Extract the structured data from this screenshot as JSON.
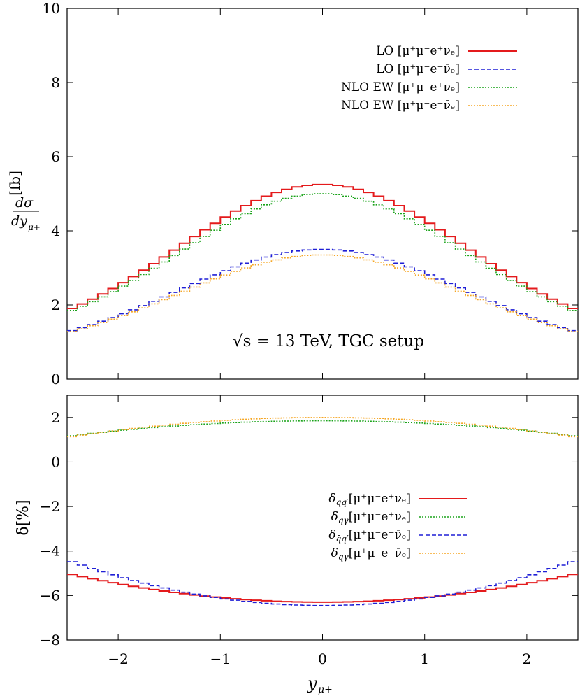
{
  "chart_data": [
    {
      "type": "line",
      "panel": "top",
      "ylabel": "dσ/dy_{μ+} [fb]",
      "ylabel_parts": {
        "num": "dσ",
        "den": "dy",
        "sub": "μ+",
        "unit": "[fb]"
      },
      "xlim": [
        -2.5,
        2.5
      ],
      "ylim": [
        0,
        10
      ],
      "yticks": [
        "0",
        "2",
        "4",
        "6",
        "8",
        "10"
      ],
      "xticks": [
        "−2",
        "−1",
        "0",
        "1",
        "2"
      ],
      "annotation": "√s = 13 TeV, TGC setup",
      "legend_position": "top-right",
      "series": [
        {
          "name": "LO [μ+μ−e+νe]",
          "label": "LO",
          "process": "[μ⁺μ⁻e⁺νₑ]",
          "color": "#e41a1c",
          "style": "solid",
          "profile": "gauss",
          "at0": 5.25,
          "at2_5": 1.85,
          "sigma": 1.4
        },
        {
          "name": "LO [μ+μ−e−ν̄e]",
          "label": "LO",
          "process": "[μ⁺μ⁻e⁻ν̄ₑ]",
          "color": "#1f1fd6",
          "style": "dashed",
          "profile": "gauss",
          "at0": 3.5,
          "at2_5": 1.27,
          "sigma": 1.4
        },
        {
          "name": "NLO EW [μ+μ−e+νe]",
          "label": "NLO EW",
          "process": "[μ⁺μ⁻e⁺νₑ]",
          "color": "#1aa31a",
          "style": "dotted",
          "profile": "gauss",
          "at0": 5.0,
          "at2_5": 1.8,
          "sigma": 1.4
        },
        {
          "name": "NLO EW [μ+μ−e−ν̄e]",
          "label": "NLO EW",
          "process": "[μ⁺μ⁻e⁻ν̄ₑ]",
          "color": "#f5a623",
          "style": "dotted",
          "profile": "gauss",
          "at0": 3.35,
          "at2_5": 1.25,
          "sigma": 1.4
        }
      ]
    },
    {
      "type": "line",
      "panel": "bottom",
      "ylabel": "δ[%]",
      "xlabel": "y_{μ+}",
      "xlabel_parts": {
        "main": "y",
        "sub": "μ+"
      },
      "xlim": [
        -2.5,
        2.5
      ],
      "ylim": [
        -8,
        3
      ],
      "yticks": [
        "−8",
        "−6",
        "−4",
        "−2",
        "0",
        "2"
      ],
      "xticks": [
        "−2",
        "−1",
        "0",
        "1",
        "2"
      ],
      "legend_position": "bottom-center",
      "series": [
        {
          "name": "δ_{q̄q′}[μ+μ−e+νe]",
          "sym": "δ",
          "sub": "q̄q′",
          "process": "[μ⁺μ⁻e⁺νₑ]",
          "color": "#e41a1c",
          "style": "solid",
          "profile": "quad",
          "at0": -6.3,
          "at2_5": -5.0
        },
        {
          "name": "δ_{qγ}[μ+μ−e+νe]",
          "sym": "δ",
          "sub": "qγ",
          "process": "[μ⁺μ⁻e⁺νₑ]",
          "color": "#1aa31a",
          "style": "dotted",
          "profile": "quad",
          "at0": 1.85,
          "at2_5": 1.15
        },
        {
          "name": "δ_{q̄q′}[μ+μ−e−ν̄e]",
          "sym": "δ",
          "sub": "q̄q′",
          "process": "[μ⁺μ⁻e⁻ν̄ₑ]",
          "color": "#1f1fd6",
          "style": "dashed",
          "profile": "quad",
          "at0": -6.45,
          "at2_5": -4.4
        },
        {
          "name": "δ_{qγ}[μ+μ−e−ν̄e]",
          "sym": "δ",
          "sub": "qγ",
          "process": "[μ⁺μ⁻e⁻ν̄ₑ]",
          "color": "#f5a623",
          "style": "dotted",
          "profile": "quad",
          "at0": 2.0,
          "at2_5": 1.1
        }
      ]
    }
  ]
}
